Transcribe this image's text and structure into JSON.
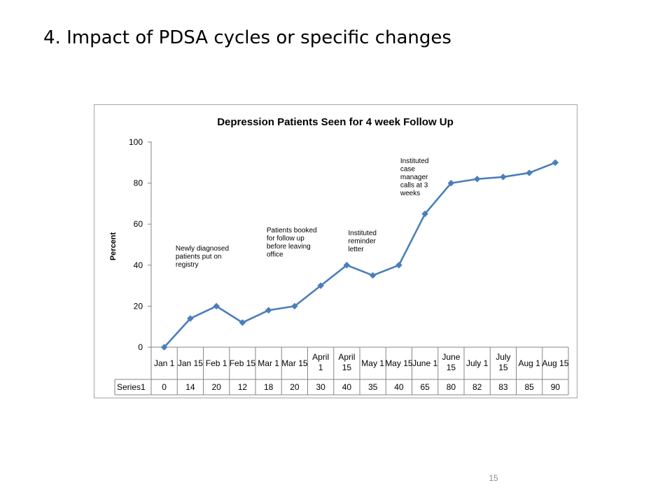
{
  "slide": {
    "title": "4. Impact of PDSA cycles or specific changes",
    "page_number": "15"
  },
  "chart_data": {
    "type": "line",
    "title": "Depression Patients Seen for 4 week Follow Up",
    "xlabel": "",
    "ylabel": "Percent",
    "categories": [
      "Jan 1",
      "Jan 15",
      "Feb 1",
      "Feb 15",
      "Mar 1",
      "Mar 15",
      "April 1",
      "April 15",
      "May 1",
      "May 15",
      "June 1",
      "June 15",
      "July 1",
      "July 15",
      "Aug 1",
      "Aug 15"
    ],
    "series": [
      {
        "name": "Series1",
        "values": [
          0,
          14,
          20,
          12,
          18,
          20,
          30,
          40,
          35,
          40,
          65,
          80,
          82,
          83,
          85,
          90
        ]
      }
    ],
    "ylim": [
      0,
      100
    ],
    "yticks": [
      0,
      20,
      40,
      60,
      80,
      100
    ],
    "grid": false,
    "legend": "none",
    "data_table": true,
    "line_color": "#4a7ebb",
    "annotations": [
      {
        "category": "Jan 15",
        "lines": [
          "Newly diagnosed",
          "patients put on",
          "registry"
        ]
      },
      {
        "category": "Mar 15",
        "lines": [
          "Patients booked",
          "for follow up",
          "before leaving",
          "office"
        ]
      },
      {
        "category": "April 15",
        "lines": [
          "Instituted",
          "reminder",
          "letter"
        ]
      },
      {
        "category": "May 15",
        "lines": [
          "Instituted",
          "case",
          "manager",
          "calls at 3",
          "weeks"
        ]
      }
    ]
  }
}
